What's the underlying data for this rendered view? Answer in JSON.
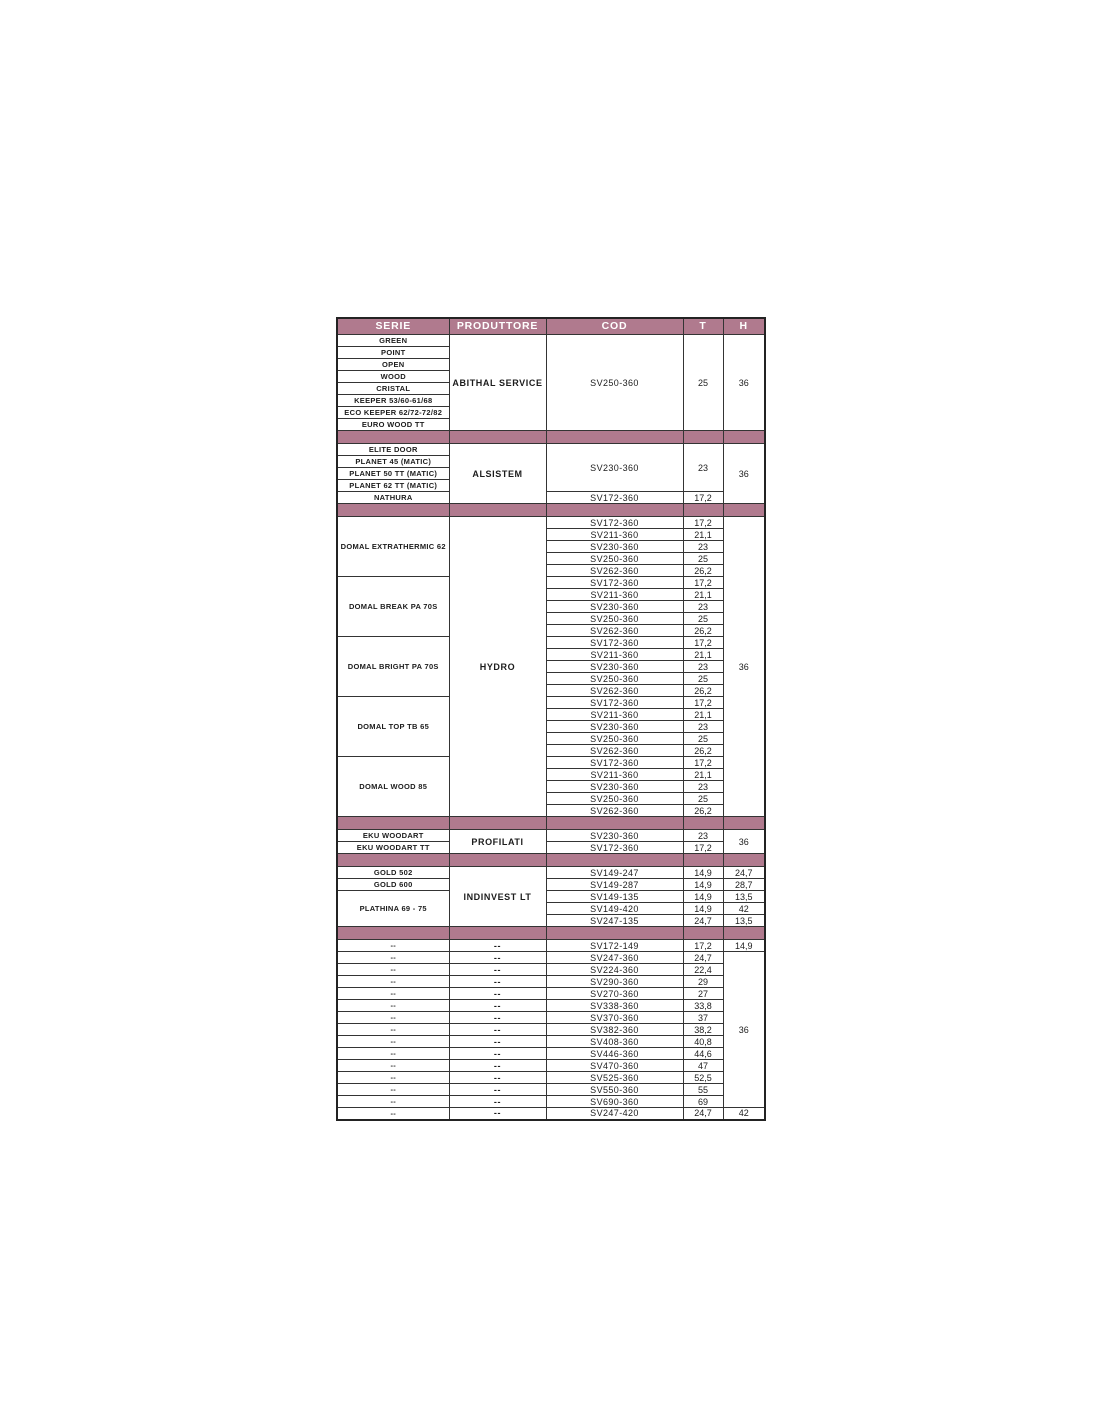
{
  "table": {
    "headers": [
      "SERIE",
      "PRODUTTORE",
      "COD",
      "T",
      "H"
    ],
    "colors": {
      "header_bg": "#b07a8e",
      "separator_bg": "#b07a8e",
      "header_text": "#ffffff",
      "border": "#343434",
      "body_text": "#1c1c1c"
    },
    "sections": [
      {
        "serie": [
          {
            "label": "GREEN",
            "span": 1
          },
          {
            "label": "POINT",
            "span": 1
          },
          {
            "label": "OPEN",
            "span": 1
          },
          {
            "label": "WOOD",
            "span": 1
          },
          {
            "label": "CRISTAL",
            "span": 1
          },
          {
            "label": "KEEPER 53/60-61/68",
            "span": 1
          },
          {
            "label": "ECO KEEPER 62/72-72/82",
            "span": 1
          },
          {
            "label": "EURO WOOD TT",
            "span": 1
          }
        ],
        "produttore": [
          {
            "label": "ABITHAL SERVICE",
            "span": 8
          }
        ],
        "cod": [
          {
            "label": "SV250-360",
            "t": "25",
            "span": 8
          }
        ],
        "h": [
          {
            "label": "36",
            "span": 8
          }
        ]
      },
      {
        "serie": [
          {
            "label": "ELITE DOOR",
            "span": 1
          },
          {
            "label": "PLANET 45 (MATIC)",
            "span": 1
          },
          {
            "label": "PLANET 50 TT (MATIC)",
            "span": 1
          },
          {
            "label": "PLANET 62 TT (MATIC)",
            "span": 1
          },
          {
            "label": "NATHURA",
            "span": 1
          }
        ],
        "produttore": [
          {
            "label": "ALSISTEM",
            "span": 5
          }
        ],
        "cod": [
          {
            "label": "SV230-360",
            "t": "23",
            "span": 4
          },
          {
            "label": "SV172-360",
            "t": "17,2",
            "span": 1
          }
        ],
        "h": [
          {
            "label": "36",
            "span": 5
          }
        ]
      },
      {
        "serie": [
          {
            "label": "DOMAL EXTRATHERMIC 62",
            "span": 5
          },
          {
            "label": "DOMAL BREAK PA 70S",
            "span": 5
          },
          {
            "label": "DOMAL BRIGHT PA 70S",
            "span": 5
          },
          {
            "label": "DOMAL TOP TB 65",
            "span": 5
          },
          {
            "label": "DOMAL WOOD 85",
            "span": 5
          }
        ],
        "produttore": [
          {
            "label": "HYDRO",
            "span": 25
          }
        ],
        "cod": [
          {
            "label": "SV172-360",
            "t": "17,2",
            "span": 1
          },
          {
            "label": "SV211-360",
            "t": "21,1",
            "span": 1
          },
          {
            "label": "SV230-360",
            "t": "23",
            "span": 1
          },
          {
            "label": "SV250-360",
            "t": "25",
            "span": 1
          },
          {
            "label": "SV262-360",
            "t": "26,2",
            "span": 1
          },
          {
            "label": "SV172-360",
            "t": "17,2",
            "span": 1
          },
          {
            "label": "SV211-360",
            "t": "21,1",
            "span": 1
          },
          {
            "label": "SV230-360",
            "t": "23",
            "span": 1
          },
          {
            "label": "SV250-360",
            "t": "25",
            "span": 1
          },
          {
            "label": "SV262-360",
            "t": "26,2",
            "span": 1
          },
          {
            "label": "SV172-360",
            "t": "17,2",
            "span": 1
          },
          {
            "label": "SV211-360",
            "t": "21,1",
            "span": 1
          },
          {
            "label": "SV230-360",
            "t": "23",
            "span": 1
          },
          {
            "label": "SV250-360",
            "t": "25",
            "span": 1
          },
          {
            "label": "SV262-360",
            "t": "26,2",
            "span": 1
          },
          {
            "label": "SV172-360",
            "t": "17,2",
            "span": 1
          },
          {
            "label": "SV211-360",
            "t": "21,1",
            "span": 1
          },
          {
            "label": "SV230-360",
            "t": "23",
            "span": 1
          },
          {
            "label": "SV250-360",
            "t": "25",
            "span": 1
          },
          {
            "label": "SV262-360",
            "t": "26,2",
            "span": 1
          },
          {
            "label": "SV172-360",
            "t": "17,2",
            "span": 1
          },
          {
            "label": "SV211-360",
            "t": "21,1",
            "span": 1
          },
          {
            "label": "SV230-360",
            "t": "23",
            "span": 1
          },
          {
            "label": "SV250-360",
            "t": "25",
            "span": 1
          },
          {
            "label": "SV262-360",
            "t": "26,2",
            "span": 1
          }
        ],
        "h": [
          {
            "label": "36",
            "span": 25
          }
        ]
      },
      {
        "serie": [
          {
            "label": "EKU WOODART",
            "span": 1
          },
          {
            "label": "EKU WOODART TT",
            "span": 1
          }
        ],
        "produttore": [
          {
            "label": "PROFILATI",
            "span": 2
          }
        ],
        "cod": [
          {
            "label": "SV230-360",
            "t": "23",
            "span": 1
          },
          {
            "label": "SV172-360",
            "t": "17,2",
            "span": 1
          }
        ],
        "h": [
          {
            "label": "36",
            "span": 2
          }
        ]
      },
      {
        "serie": [
          {
            "label": "GOLD 502",
            "span": 1
          },
          {
            "label": "GOLD 600",
            "span": 1
          },
          {
            "label": "PLATHINA 69 - 75",
            "span": 3
          }
        ],
        "produttore": [
          {
            "label": "INDINVEST LT",
            "span": 5
          }
        ],
        "cod": [
          {
            "label": "SV149-247",
            "t": "14,9",
            "span": 1
          },
          {
            "label": "SV149-287",
            "t": "14,9",
            "span": 1
          },
          {
            "label": "SV149-135",
            "t": "14,9",
            "span": 1
          },
          {
            "label": "SV149-420",
            "t": "14,9",
            "span": 1
          },
          {
            "label": "SV247-135",
            "t": "24,7",
            "span": 1
          }
        ],
        "h": [
          {
            "label": "24,7",
            "span": 1
          },
          {
            "label": "28,7",
            "span": 1
          },
          {
            "label": "13,5",
            "span": 1
          },
          {
            "label": "42",
            "span": 1
          },
          {
            "label": "13,5",
            "span": 1
          }
        ]
      },
      {
        "serie": [
          {
            "label": "--",
            "span": 1
          },
          {
            "label": "--",
            "span": 1
          },
          {
            "label": "--",
            "span": 1
          },
          {
            "label": "--",
            "span": 1
          },
          {
            "label": "--",
            "span": 1
          },
          {
            "label": "--",
            "span": 1
          },
          {
            "label": "--",
            "span": 1
          },
          {
            "label": "--",
            "span": 1
          },
          {
            "label": "--",
            "span": 1
          },
          {
            "label": "--",
            "span": 1
          },
          {
            "label": "--",
            "span": 1
          },
          {
            "label": "--",
            "span": 1
          },
          {
            "label": "--",
            "span": 1
          },
          {
            "label": "--",
            "span": 1
          },
          {
            "label": "--",
            "span": 1
          }
        ],
        "produttore": [
          {
            "label": "--",
            "span": 1
          },
          {
            "label": "--",
            "span": 1
          },
          {
            "label": "--",
            "span": 1
          },
          {
            "label": "--",
            "span": 1
          },
          {
            "label": "--",
            "span": 1
          },
          {
            "label": "--",
            "span": 1
          },
          {
            "label": "--",
            "span": 1
          },
          {
            "label": "--",
            "span": 1
          },
          {
            "label": "--",
            "span": 1
          },
          {
            "label": "--",
            "span": 1
          },
          {
            "label": "--",
            "span": 1
          },
          {
            "label": "--",
            "span": 1
          },
          {
            "label": "--",
            "span": 1
          },
          {
            "label": "--",
            "span": 1
          },
          {
            "label": "--",
            "span": 1
          }
        ],
        "cod": [
          {
            "label": "SV172-149",
            "t": "17,2",
            "span": 1
          },
          {
            "label": "SV247-360",
            "t": "24,7",
            "span": 1
          },
          {
            "label": "SV224-360",
            "t": "22,4",
            "span": 1
          },
          {
            "label": "SV290-360",
            "t": "29",
            "span": 1
          },
          {
            "label": "SV270-360",
            "t": "27",
            "span": 1
          },
          {
            "label": "SV338-360",
            "t": "33,8",
            "span": 1
          },
          {
            "label": "SV370-360",
            "t": "37",
            "span": 1
          },
          {
            "label": "SV382-360",
            "t": "38,2",
            "span": 1
          },
          {
            "label": "SV408-360",
            "t": "40,8",
            "span": 1
          },
          {
            "label": "SV446-360",
            "t": "44,6",
            "span": 1
          },
          {
            "label": "SV470-360",
            "t": "47",
            "span": 1
          },
          {
            "label": "SV525-360",
            "t": "52,5",
            "span": 1
          },
          {
            "label": "SV550-360",
            "t": "55",
            "span": 1
          },
          {
            "label": "SV690-360",
            "t": "69",
            "span": 1
          },
          {
            "label": "SV247-420",
            "t": "24,7",
            "span": 1
          }
        ],
        "h": [
          {
            "label": "14,9",
            "span": 1
          },
          {
            "label": "36",
            "span": 13
          },
          {
            "label": "42",
            "span": 1
          }
        ]
      }
    ]
  }
}
